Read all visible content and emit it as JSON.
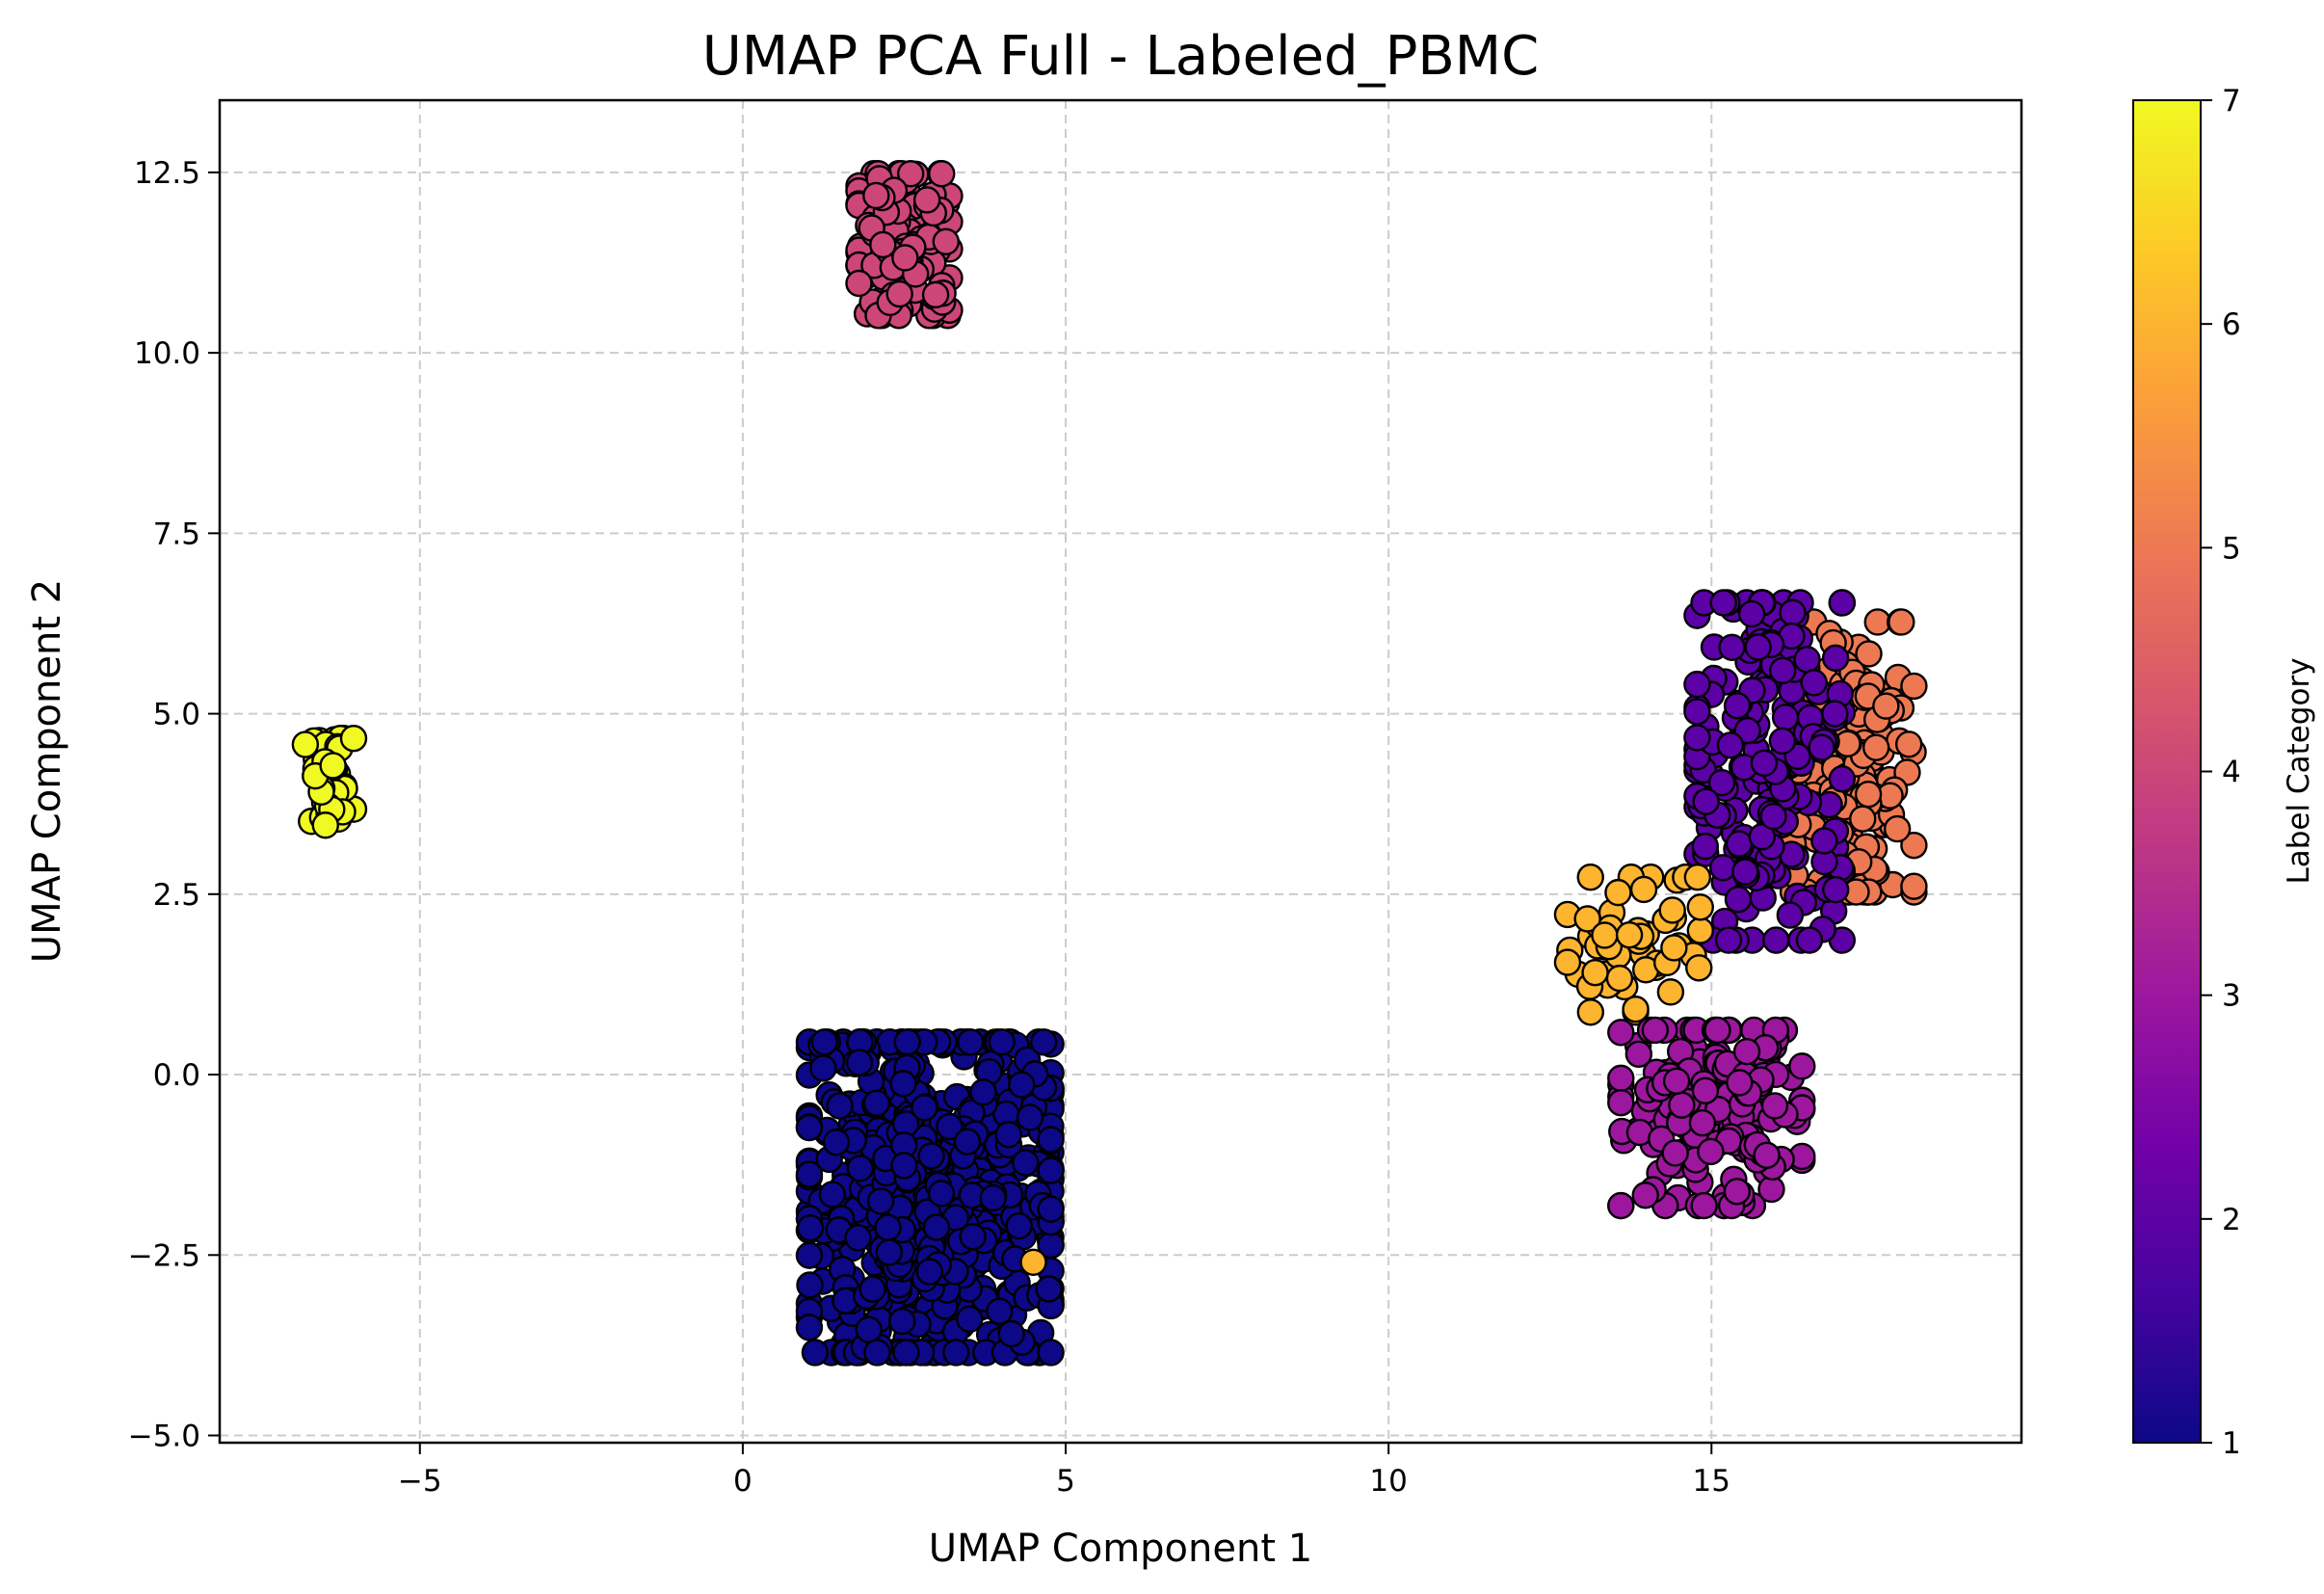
{
  "chart_data": {
    "type": "scatter",
    "title": "UMAP PCA Full - Labeled_PBMC",
    "xlabel": "UMAP Component 1",
    "ylabel": "UMAP Component 2",
    "xlim": [
      -8.1,
      19.8
    ],
    "ylim": [
      -5.1,
      13.5
    ],
    "xticks": [
      -5,
      0,
      5,
      10,
      15
    ],
    "xtick_labels": [
      "−5",
      "0",
      "5",
      "10",
      "15"
    ],
    "yticks": [
      -5.0,
      -2.5,
      0.0,
      2.5,
      5.0,
      7.5,
      10.0,
      12.5
    ],
    "ytick_labels": [
      "−5.0",
      "−2.5",
      "0.0",
      "2.5",
      "5.0",
      "7.5",
      "10.0",
      "12.5"
    ],
    "grid": true,
    "grid_style": "dashed",
    "marker_edge_color": "#000000",
    "colormap": "plasma",
    "colorbar": {
      "label": "Label Category",
      "range": [
        1,
        7
      ],
      "ticks": [
        1,
        2,
        3,
        4,
        5,
        6,
        7
      ],
      "tick_labels": [
        "1",
        "2",
        "3",
        "4",
        "5",
        "6",
        "7"
      ],
      "stops": [
        "#0d0887",
        "#46039f",
        "#7201a8",
        "#9c179e",
        "#bd3786",
        "#d8576b",
        "#ed7953",
        "#fb9f3a",
        "#fdca26",
        "#f0f921"
      ]
    },
    "clusters": [
      {
        "category": 7,
        "color": "#f0f921",
        "center": [
          -6.4,
          4.05
        ],
        "spread": [
          0.4,
          0.65
        ],
        "count": 45
      },
      {
        "category": 4,
        "color": "#cc4778",
        "center": [
          2.5,
          11.5
        ],
        "spread": [
          0.75,
          1.05
        ],
        "count": 140
      },
      {
        "category": 1,
        "color": "#0d0887",
        "center": [
          2.9,
          -1.7
        ],
        "spread": [
          2.0,
          2.3
        ],
        "count": 620
      },
      {
        "category": 5,
        "color": "#ed7953",
        "center": [
          17.2,
          4.4
        ],
        "spread": [
          1.0,
          2.0
        ],
        "count": 160
      },
      {
        "category": 2,
        "color": "#5c01a6",
        "center": [
          15.9,
          4.2
        ],
        "spread": [
          1.2,
          2.5
        ],
        "count": 200
      },
      {
        "category": 6,
        "color": "#fdb42f",
        "center": [
          13.8,
          1.8
        ],
        "spread": [
          1.1,
          1.0
        ],
        "count": 55
      },
      {
        "category": 3,
        "color": "#9c179e",
        "center": [
          15.0,
          -0.6
        ],
        "spread": [
          1.5,
          1.3
        ],
        "count": 170
      }
    ],
    "points": [
      {
        "x": 4.5,
        "y": -2.6,
        "category": 6
      }
    ]
  }
}
